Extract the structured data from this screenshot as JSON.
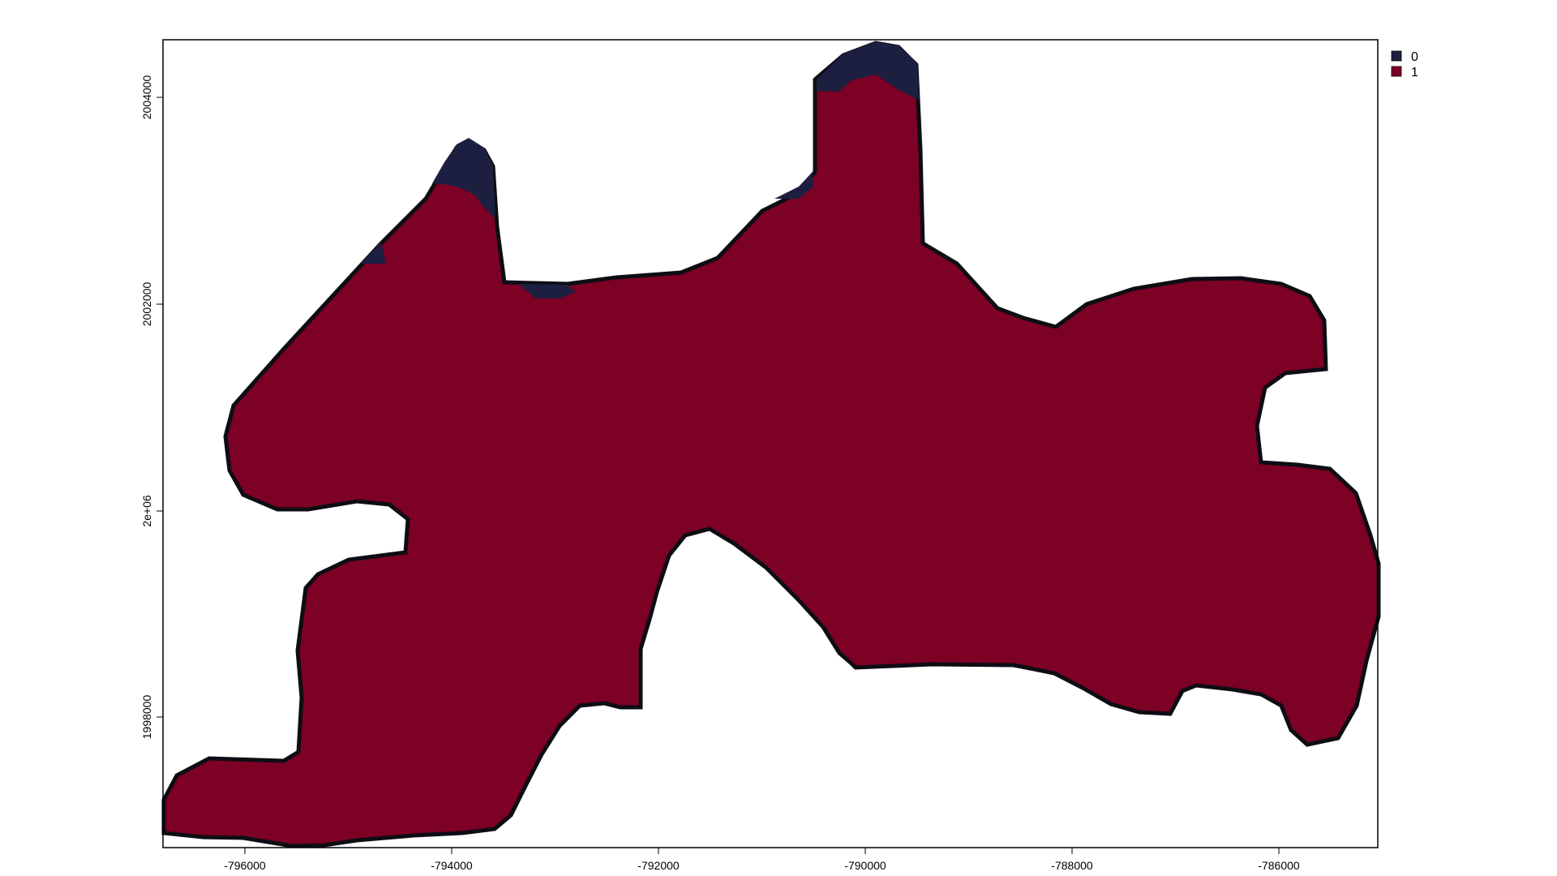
{
  "chart_data": {
    "type": "raster-map",
    "x_ticks": [
      "-796000",
      "-794000",
      "-792000",
      "-790000",
      "-788000",
      "-786000"
    ],
    "y_ticks": [
      "1998000",
      "2e+06",
      "2002000",
      "2004000"
    ],
    "legend": [
      {
        "label": "0",
        "color": "#1c1f40"
      },
      {
        "label": "1",
        "color": "#7d0025"
      }
    ],
    "categories": [
      "0",
      "1"
    ],
    "grid": false,
    "legend_placement": "top-right, outside plot"
  },
  "colors": {
    "class_0": "#1c1f40",
    "class_1": "#7d0025",
    "outline": "#0d0d14",
    "frame": "#000000"
  }
}
